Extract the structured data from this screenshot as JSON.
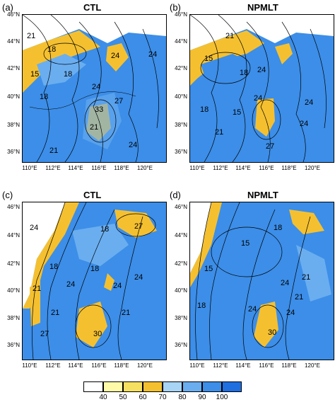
{
  "panels": [
    {
      "label": "(a)",
      "title": "CTL",
      "contour_labels": [
        "21",
        "18",
        "24",
        "15",
        "18",
        "24",
        "24",
        "33",
        "18",
        "21",
        "24",
        "21",
        "27"
      ]
    },
    {
      "label": "(b)",
      "title": "NPMLT",
      "contour_labels": [
        "21",
        "15",
        "24",
        "18",
        "24",
        "18",
        "24",
        "27",
        "21",
        "15",
        "24"
      ]
    },
    {
      "label": "(c)",
      "title": "CTL",
      "contour_labels": [
        "24",
        "18",
        "27",
        "18",
        "21",
        "18",
        "24",
        "24",
        "21",
        "27",
        "24",
        "30",
        "21"
      ]
    },
    {
      "label": "(d)",
      "title": "NPMLT",
      "contour_labels": [
        "18",
        "15",
        "15",
        "18",
        "24",
        "24",
        "21",
        "24",
        "30",
        "21"
      ]
    }
  ],
  "y_ticks": [
    "46°N",
    "44°N",
    "42°N",
    "40°N",
    "38°N",
    "36°N"
  ],
  "x_ticks": [
    "110°E",
    "112°E",
    "114°E",
    "116°E",
    "118°E",
    "120°E"
  ],
  "colorbar": {
    "ticks": [
      "40",
      "50",
      "60",
      "70",
      "80",
      "90",
      "100"
    ],
    "colors": [
      "#ffffff",
      "#fffaa8",
      "#f5e060",
      "#f5c030",
      "#a8d4f5",
      "#6aaef0",
      "#3c8ee8",
      "#1f6fe0"
    ]
  }
}
